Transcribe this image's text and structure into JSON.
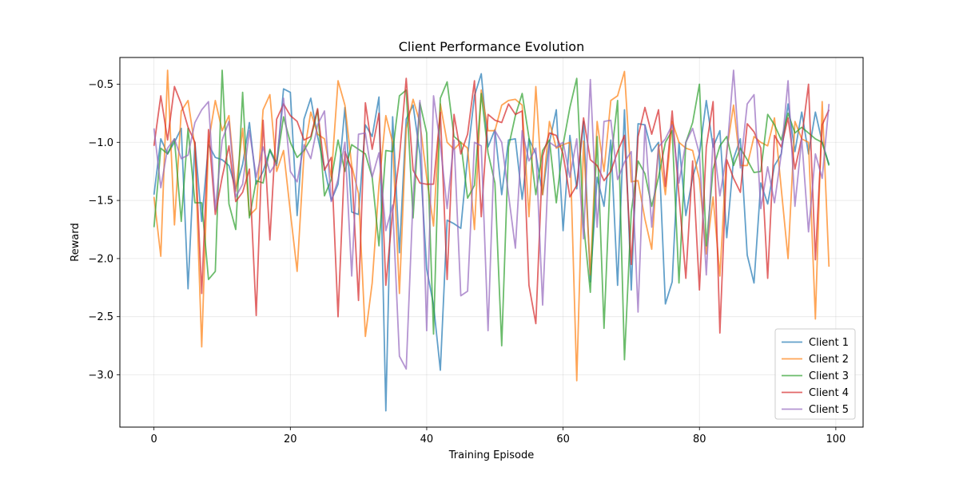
{
  "chart_data": {
    "type": "line",
    "title": "Client Performance Evolution",
    "xlabel": "Training Episode",
    "ylabel": "Reward",
    "xlim": [
      -5,
      104
    ],
    "ylim": [
      -3.45,
      -0.27
    ],
    "x_ticks": [
      0,
      20,
      40,
      60,
      80,
      100
    ],
    "y_ticks": [
      -3.0,
      -2.5,
      -2.0,
      -1.5,
      -1.0,
      -0.5
    ],
    "x_tick_labels": [
      "0",
      "20",
      "40",
      "60",
      "80",
      "100"
    ],
    "y_tick_labels": [
      "−3.0",
      "−2.5",
      "−2.0",
      "−1.5",
      "−1.0",
      "−0.5"
    ],
    "grid": true,
    "legend_position": "lower-right",
    "x": [
      0,
      1,
      2,
      3,
      4,
      5,
      6,
      7,
      8,
      9,
      10,
      11,
      12,
      13,
      14,
      15,
      16,
      17,
      18,
      19,
      20,
      21,
      22,
      23,
      24,
      25,
      26,
      27,
      28,
      29,
      30,
      31,
      32,
      33,
      34,
      35,
      36,
      37,
      38,
      39,
      40,
      41,
      42,
      43,
      44,
      45,
      46,
      47,
      48,
      49,
      50,
      51,
      52,
      53,
      54,
      55,
      56,
      57,
      58,
      59,
      60,
      61,
      62,
      63,
      64,
      65,
      66,
      67,
      68,
      69,
      70,
      71,
      72,
      73,
      74,
      75,
      76,
      77,
      78,
      79,
      80,
      81,
      82,
      83,
      84,
      85,
      86,
      87,
      88,
      89,
      90,
      91,
      92,
      93,
      94,
      95,
      96,
      97,
      98,
      99
    ],
    "series": [
      {
        "name": "Client 1",
        "color": "#1f77b4",
        "values": [
          -1.45,
          -0.97,
          -1.1,
          -1.0,
          -0.88,
          -2.26,
          -1.0,
          -1.68,
          -1.02,
          -1.13,
          -1.15,
          -1.2,
          -1.4,
          -1.19,
          -0.83,
          -1.36,
          -1.25,
          -1.07,
          -1.2,
          -0.54,
          -0.57,
          -1.63,
          -0.8,
          -0.62,
          -0.95,
          -1.22,
          -1.5,
          -1.36,
          -0.7,
          -1.6,
          -1.62,
          -0.85,
          -0.95,
          -0.61,
          -3.31,
          -0.78,
          -1.95,
          -0.8,
          -0.68,
          -1.1,
          -2.09,
          -2.4,
          -2.96,
          -1.67,
          -1.7,
          -1.74,
          -1.12,
          -0.6,
          -0.41,
          -1.04,
          -0.89,
          -1.45,
          -0.98,
          -0.97,
          -1.49,
          -0.97,
          -1.1,
          -1.45,
          -1.0,
          -0.72,
          -1.76,
          -0.94,
          -1.4,
          -0.82,
          -2.2,
          -1.3,
          -1.55,
          -0.98,
          -2.23,
          -0.72,
          -2.27,
          -0.84,
          -0.85,
          -1.08,
          -1.0,
          -2.39,
          -2.2,
          -1.0,
          -1.63,
          -1.3,
          -1.1,
          -0.64,
          -1.04,
          -0.9,
          -1.82,
          -1.14,
          -0.97,
          -1.97,
          -2.21,
          -1.35,
          -1.53,
          -1.2,
          -1.1,
          -0.67,
          -1.08,
          -0.74,
          -1.1,
          -0.74,
          -1.0,
          -1.19
        ]
      },
      {
        "name": "Client 2",
        "color": "#ff7f0e",
        "values": [
          -1.47,
          -1.98,
          -0.38,
          -1.71,
          -0.73,
          -0.64,
          -1.04,
          -2.76,
          -1.0,
          -0.64,
          -0.9,
          -0.77,
          -1.42,
          -0.88,
          -1.63,
          -1.57,
          -0.72,
          -0.59,
          -1.25,
          -1.07,
          -1.6,
          -2.11,
          -1.1,
          -0.74,
          -0.93,
          -0.97,
          -1.3,
          -0.47,
          -0.68,
          -1.2,
          -1.44,
          -2.67,
          -2.21,
          -1.37,
          -0.77,
          -1.0,
          -2.3,
          -0.88,
          -0.63,
          -0.83,
          -1.3,
          -1.72,
          -0.67,
          -1.0,
          -1.06,
          -1.0,
          -1.05,
          -1.75,
          -0.55,
          -0.9,
          -0.9,
          -0.68,
          -0.64,
          -0.63,
          -0.68,
          -1.64,
          -0.52,
          -1.45,
          -0.82,
          -1.05,
          -1.02,
          -1.0,
          -3.05,
          -0.99,
          -2.14,
          -0.82,
          -1.25,
          -0.64,
          -0.6,
          -0.39,
          -1.34,
          -1.33,
          -1.66,
          -1.92,
          -1.02,
          -1.45,
          -0.82,
          -1.0,
          -1.05,
          -1.07,
          -1.32,
          -1.96,
          -1.47,
          -2.15,
          -1.07,
          -0.68,
          -1.2,
          -1.2,
          -0.95,
          -1.0,
          -1.03,
          -0.79,
          -1.4,
          -2.0,
          -0.82,
          -0.97,
          -1.0,
          -2.52,
          -0.65,
          -2.07
        ]
      },
      {
        "name": "Client 3",
        "color": "#2ca02c",
        "values": [
          -1.73,
          -1.05,
          -1.1,
          -0.97,
          -1.68,
          -0.88,
          -1.52,
          -1.52,
          -2.18,
          -2.11,
          -0.38,
          -1.53,
          -1.75,
          -0.57,
          -1.65,
          -1.33,
          -1.35,
          -1.06,
          -1.18,
          -0.78,
          -1.0,
          -1.13,
          -1.07,
          -0.97,
          -0.72,
          -1.46,
          -1.32,
          -0.98,
          -1.25,
          -1.02,
          -1.06,
          -1.1,
          -1.3,
          -1.89,
          -1.07,
          -1.08,
          -0.6,
          -0.55,
          -1.65,
          -0.66,
          -0.92,
          -2.65,
          -0.62,
          -0.48,
          -0.95,
          -1.0,
          -1.48,
          -1.37,
          -0.58,
          -1.09,
          -1.35,
          -2.75,
          -1.04,
          -0.77,
          -0.58,
          -0.96,
          -1.45,
          -1.07,
          -0.98,
          -1.52,
          -1.02,
          -0.7,
          -0.45,
          -1.7,
          -2.29,
          -0.95,
          -2.6,
          -1.17,
          -0.64,
          -2.87,
          -1.6,
          -1.16,
          -1.27,
          -1.55,
          -1.3,
          -1.0,
          -0.9,
          -2.21,
          -1.0,
          -0.83,
          -0.5,
          -1.89,
          -1.23,
          -1.03,
          -0.95,
          -1.2,
          -1.05,
          -1.15,
          -1.26,
          -1.25,
          -0.76,
          -0.85,
          -0.98,
          -0.75,
          -0.92,
          -0.87,
          -0.92,
          -0.97,
          -1.0,
          -1.2
        ]
      },
      {
        "name": "Client 4",
        "color": "#d62728",
        "values": [
          -1.03,
          -0.6,
          -0.98,
          -0.52,
          -0.67,
          -0.87,
          -1.0,
          -2.3,
          -0.89,
          -1.62,
          -1.3,
          -1.03,
          -1.51,
          -1.43,
          -1.23,
          -2.49,
          -0.81,
          -1.84,
          -0.8,
          -0.67,
          -0.77,
          -0.82,
          -0.98,
          -0.95,
          -0.71,
          -1.24,
          -1.13,
          -2.5,
          -1.08,
          -1.23,
          -2.36,
          -0.66,
          -1.06,
          -0.75,
          -2.23,
          -1.6,
          -1.13,
          -0.45,
          -1.24,
          -1.35,
          -1.36,
          -1.36,
          -0.74,
          -2.18,
          -0.76,
          -1.1,
          -0.93,
          -0.47,
          -1.64,
          -0.76,
          -0.81,
          -0.83,
          -0.67,
          -0.76,
          -0.73,
          -2.23,
          -2.56,
          -1.12,
          -0.92,
          -0.94,
          -1.1,
          -1.47,
          -1.37,
          -0.79,
          -1.15,
          -1.2,
          -1.33,
          -1.25,
          -1.08,
          -0.94,
          -2.05,
          -0.95,
          -0.7,
          -0.93,
          -0.72,
          -1.38,
          -0.73,
          -1.46,
          -2.17,
          -1.16,
          -2.27,
          -1.04,
          -0.65,
          -2.64,
          -1.15,
          -1.31,
          -1.43,
          -0.84,
          -0.91,
          -1.05,
          -2.17,
          -0.94,
          -1.04,
          -0.79,
          -1.23,
          -0.96,
          -0.5,
          -2.01,
          -0.85,
          -0.72
        ]
      },
      {
        "name": "Client 5",
        "color": "#9467bd",
        "values": [
          -0.88,
          -1.39,
          -1.05,
          -0.97,
          -1.14,
          -1.11,
          -0.83,
          -0.72,
          -0.65,
          -1.58,
          -0.98,
          -0.82,
          -1.47,
          -1.36,
          -0.9,
          -1.3,
          -1.04,
          -1.26,
          -1.17,
          -0.62,
          -1.25,
          -1.34,
          -1.02,
          -1.14,
          -0.85,
          -0.73,
          -1.51,
          -1.32,
          -1.0,
          -2.15,
          -0.93,
          -0.92,
          -1.3,
          -1.09,
          -1.76,
          -1.54,
          -2.84,
          -2.95,
          -1.47,
          -0.64,
          -2.62,
          -0.6,
          -1.02,
          -1.57,
          -0.98,
          -2.32,
          -2.28,
          -1.0,
          -1.03,
          -2.62,
          -0.9,
          -1.0,
          -1.45,
          -1.91,
          -0.9,
          -1.16,
          -1.05,
          -2.4,
          -1.0,
          -1.04,
          -1.0,
          -1.3,
          -0.97,
          -1.83,
          -0.46,
          -1.73,
          -0.82,
          -0.81,
          -1.32,
          -1.17,
          -1.08,
          -2.46,
          -0.85,
          -1.73,
          -1.04,
          -0.97,
          -0.85,
          -1.35,
          -1.0,
          -0.88,
          -1.1,
          -2.14,
          -0.97,
          -1.46,
          -1.1,
          -0.38,
          -1.22,
          -0.67,
          -0.59,
          -1.57,
          -1.21,
          -1.52,
          -1.1,
          -0.47,
          -1.55,
          -0.97,
          -1.77,
          -1.1,
          -1.31,
          -0.67
        ]
      }
    ]
  }
}
